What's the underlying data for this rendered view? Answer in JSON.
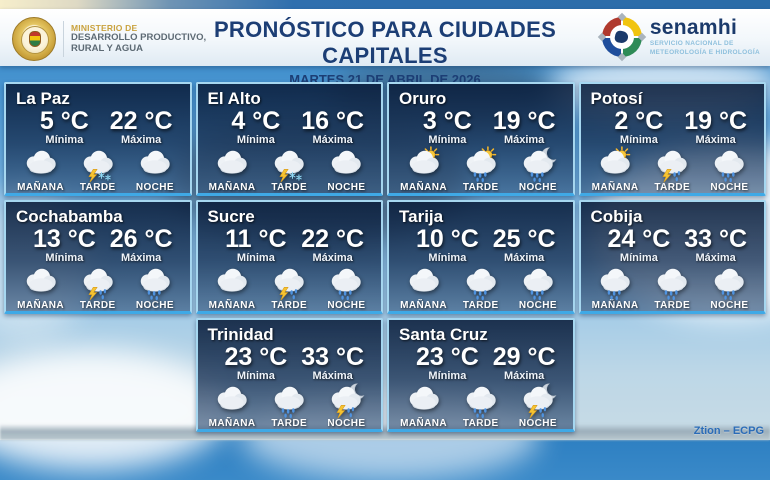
{
  "header": {
    "ministry": {
      "line1": "MINISTERIO DE",
      "line2": "DESARROLLO PRODUCTIVO,",
      "line3": "RURAL Y AGUA"
    },
    "title": "PRONÓSTICO PARA CIUDADES CAPITALES",
    "date": "MARTES 21 DE ABRIL DE 2026",
    "senamhi": {
      "name": "senamhi",
      "sub1": "SERVICIO NACIONAL DE",
      "sub2": "METEOROLOGÍA E HIDROLOGÍA"
    }
  },
  "labels": {
    "min": "Mínima",
    "max": "Máxima",
    "periods": [
      "MAÑANA",
      "TARDE",
      "NOCHE"
    ]
  },
  "watermark": "Ztion – ECPG",
  "colors": {
    "title_navy": "#1c3e75",
    "card_border": "#a6d7f0",
    "card_bottom_border": "#3fa9e6",
    "accent_yellow": "#f6c431",
    "rain_blue": "#4f93e0",
    "ministry_gold": "#c9a23e",
    "senamhi_subtext": "#8fc0dd",
    "watermark_blue": "#2b6cb8"
  },
  "cities": [
    {
      "name": "La Paz",
      "min": "5 °C",
      "max": "22 °C",
      "icons": [
        "cloud",
        "storm-snow",
        "cloud"
      ]
    },
    {
      "name": "El Alto",
      "min": "4 °C",
      "max": "16 °C",
      "icons": [
        "cloud",
        "storm-snow",
        "cloud"
      ]
    },
    {
      "name": "Oruro",
      "min": "3 °C",
      "max": "19 °C",
      "icons": [
        "partly-sunny",
        "sun-rain",
        "moon-rain"
      ]
    },
    {
      "name": "Potosí",
      "min": "2 °C",
      "max": "19 °C",
      "icons": [
        "partly-sunny",
        "storm-rain",
        "rain"
      ]
    },
    {
      "name": "Cochabamba",
      "min": "13 °C",
      "max": "26 °C",
      "icons": [
        "cloud",
        "storm-rain",
        "rain"
      ]
    },
    {
      "name": "Sucre",
      "min": "11 °C",
      "max": "22 °C",
      "icons": [
        "cloud",
        "storm-rain",
        "rain"
      ]
    },
    {
      "name": "Tarija",
      "min": "10 °C",
      "max": "25 °C",
      "icons": [
        "cloud",
        "rain",
        "rain"
      ]
    },
    {
      "name": "Cobija",
      "min": "24 °C",
      "max": "33 °C",
      "icons": [
        "rain",
        "rain",
        "rain"
      ]
    },
    {
      "name": "Trinidad",
      "min": "23 °C",
      "max": "33 °C",
      "icons": [
        "cloud",
        "rain",
        "moon-storm"
      ]
    },
    {
      "name": "Santa Cruz",
      "min": "23 °C",
      "max": "29 °C",
      "icons": [
        "cloud",
        "rain",
        "moon-storm"
      ]
    }
  ]
}
